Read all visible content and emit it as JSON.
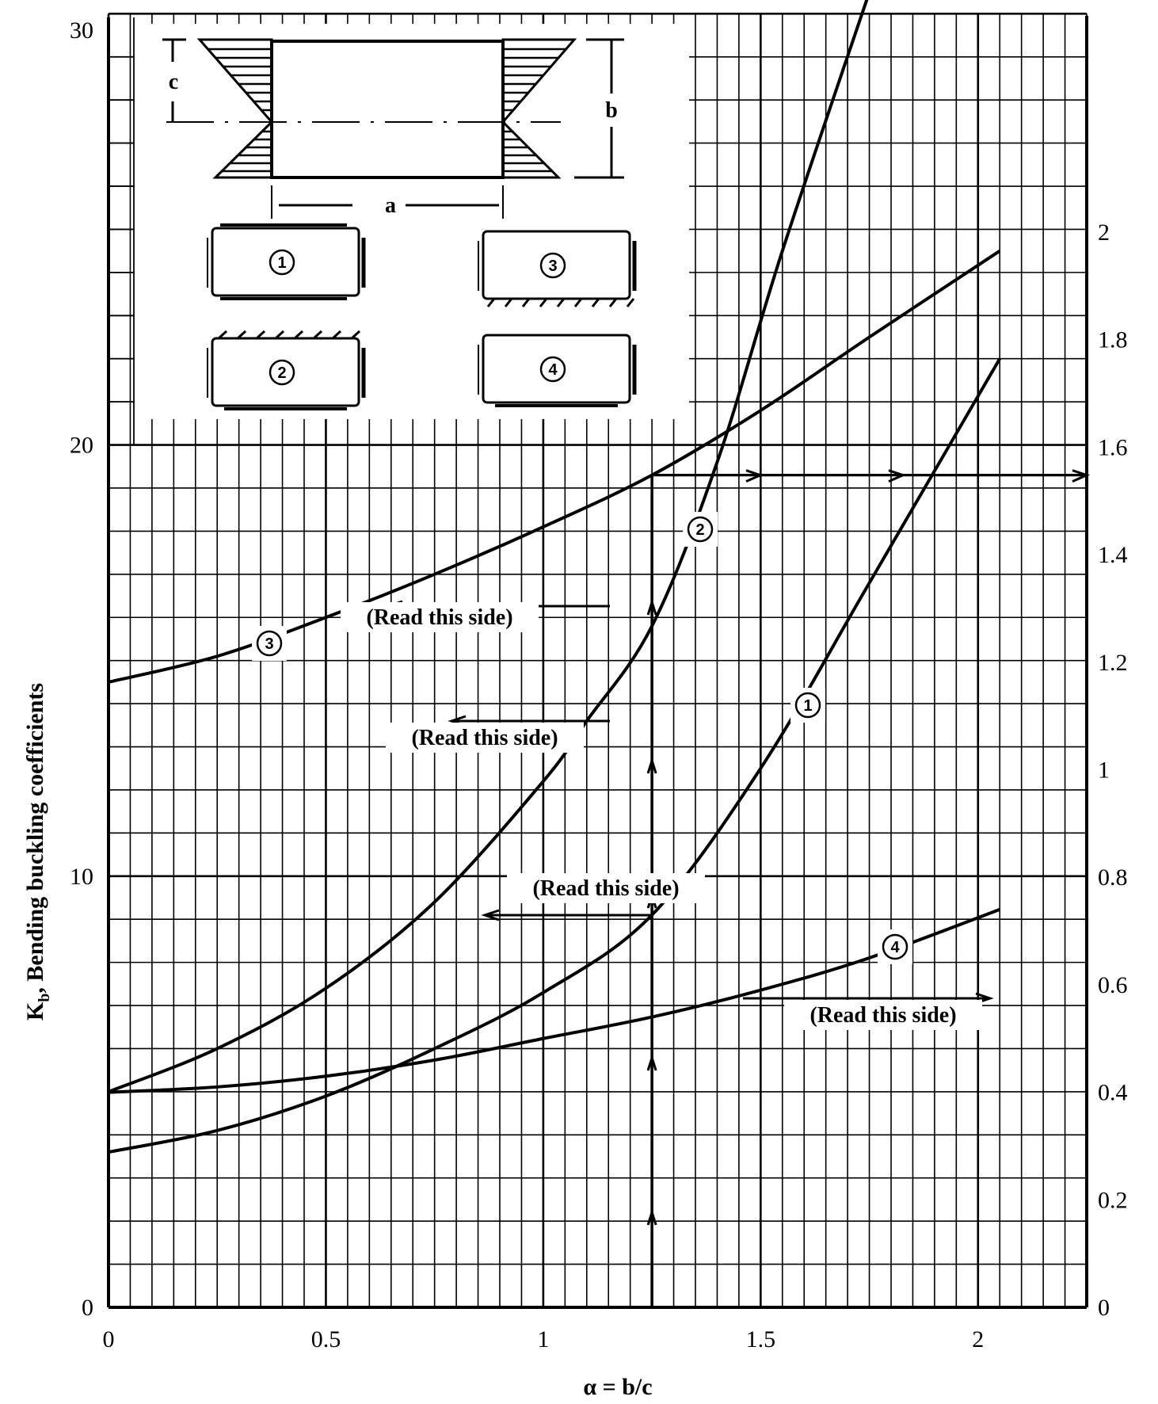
{
  "chart_data": {
    "type": "line",
    "title": "",
    "xlabel": "α = b/c",
    "ylabel": "K_b, Bending buckling coefficients",
    "ylabel_main": "K",
    "ylabel_sub": "b",
    "ylabel_rest": ", Bending buckling coefficients",
    "xlim": [
      0,
      2.25
    ],
    "ylim_left": [
      0,
      30
    ],
    "ylim_right": [
      0,
      2.2
    ],
    "grid": true,
    "x_ticks": [
      {
        "value": 0,
        "label": "0"
      },
      {
        "value": 0.5,
        "label": "0.5"
      },
      {
        "value": 1,
        "label": "1"
      },
      {
        "value": 1.5,
        "label": "1.5"
      },
      {
        "value": 2,
        "label": "2"
      }
    ],
    "left_ticks": [
      {
        "value": 0,
        "label": "0"
      },
      {
        "value": 10,
        "label": "10"
      },
      {
        "value": 20,
        "label": "20"
      },
      {
        "value": 30,
        "label": "30"
      }
    ],
    "right_ticks": [
      {
        "value": 0,
        "label": "0"
      },
      {
        "value": 0.2,
        "label": "0.2"
      },
      {
        "value": 0.4,
        "label": "0.4"
      },
      {
        "value": 0.6,
        "label": "0.6"
      },
      {
        "value": 0.8,
        "label": "0.8"
      },
      {
        "value": 1.0,
        "label": "1"
      },
      {
        "value": 1.2,
        "label": "1.2"
      },
      {
        "value": 1.4,
        "label": "1.4"
      },
      {
        "value": 1.6,
        "label": "1.6"
      },
      {
        "value": 1.8,
        "label": "1.8"
      },
      {
        "value": 2.0,
        "label": "2"
      }
    ],
    "series": [
      {
        "name": "①",
        "id": "1",
        "axis": "left",
        "x": [
          0,
          0.25,
          0.5,
          0.75,
          1.0,
          1.25,
          1.5,
          1.75,
          2.05
        ],
        "y": [
          3.6,
          4.1,
          4.9,
          6.0,
          7.3,
          9.1,
          12.5,
          16.8,
          22.0
        ]
      },
      {
        "name": "②",
        "id": "2",
        "axis": "left",
        "x": [
          0,
          0.25,
          0.5,
          0.75,
          1.0,
          1.1,
          1.25,
          1.4,
          1.55,
          1.75
        ],
        "y": [
          5.0,
          6.0,
          7.4,
          9.4,
          12.2,
          13.6,
          15.8,
          19.6,
          24.5,
          30.5
        ]
      },
      {
        "name": "③",
        "id": "3",
        "axis": "left",
        "x": [
          0,
          0.25,
          0.5,
          0.75,
          1.0,
          1.25,
          1.5,
          1.75,
          2.05
        ],
        "y": [
          14.5,
          15.1,
          16.0,
          17.0,
          18.1,
          19.3,
          20.8,
          22.5,
          24.5
        ]
      },
      {
        "name": "④",
        "id": "4",
        "axis": "right",
        "x": [
          0,
          0.25,
          0.5,
          0.75,
          1.0,
          1.25,
          1.5,
          1.75,
          2.05
        ],
        "y": [
          0.4,
          0.41,
          0.43,
          0.46,
          0.5,
          0.54,
          0.59,
          0.65,
          0.74
        ]
      }
    ],
    "annotations": [
      {
        "text": "(Read this side)",
        "target_curve": "3",
        "direction": "left"
      },
      {
        "text": "(Read this side)",
        "target_curve": "2",
        "direction": "left"
      },
      {
        "text": "(Read this side)",
        "target_curve": "1",
        "direction": "left"
      },
      {
        "text": "(Read this side)",
        "target_curve": "4",
        "direction": "right"
      }
    ],
    "example_reading": {
      "alpha": 1.25,
      "horizontal_arrow_right_value": 1.55
    }
  },
  "inset": {
    "dim_c": "c",
    "dim_b": "b",
    "dim_a": "a",
    "cases": [
      {
        "label": "①",
        "bc": "left/right simply supported, top/bottom clamped"
      },
      {
        "label": "②",
        "bc": "top fixed"
      },
      {
        "label": "③",
        "bc": "bottom fixed"
      },
      {
        "label": "④",
        "bc": "all simply supported"
      }
    ]
  },
  "annotation_label": "(Read this side)",
  "colors": {
    "ink": "#000000",
    "paper": "#ffffff"
  }
}
